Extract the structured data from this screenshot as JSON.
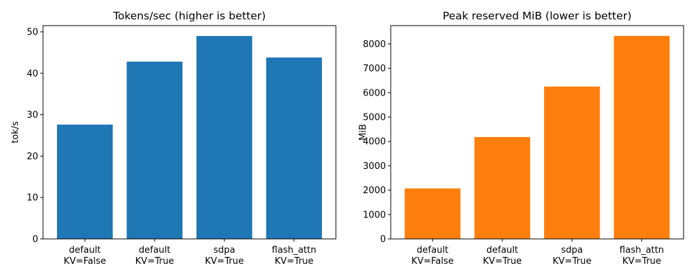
{
  "chart_data": [
    {
      "type": "bar",
      "title": "Tokens/sec (higher is better)",
      "xlabel": "",
      "ylabel": "tok/s",
      "categories": [
        [
          "default",
          "KV=False"
        ],
        [
          "default",
          "KV=True"
        ],
        [
          "sdpa",
          "KV=True"
        ],
        [
          "flash_attn",
          "KV=True"
        ]
      ],
      "values": [
        27.6,
        42.8,
        49.0,
        43.8
      ],
      "ylim": [
        0,
        51.5
      ],
      "yticks": [
        0,
        10,
        20,
        30,
        40,
        50
      ],
      "color": "#1f77b4",
      "grid": false
    },
    {
      "type": "bar",
      "title": "Peak reserved MiB (lower is better)",
      "xlabel": "",
      "ylabel": "MiB",
      "categories": [
        [
          "default",
          "KV=False"
        ],
        [
          "default",
          "KV=True"
        ],
        [
          "sdpa",
          "KV=True"
        ],
        [
          "flash_attn",
          "KV=True"
        ]
      ],
      "values": [
        2070,
        4180,
        6250,
        8330
      ],
      "ylim": [
        0,
        8750
      ],
      "yticks": [
        0,
        1000,
        2000,
        3000,
        4000,
        5000,
        6000,
        7000,
        8000
      ],
      "color": "#ff7f0e",
      "grid": false
    }
  ]
}
